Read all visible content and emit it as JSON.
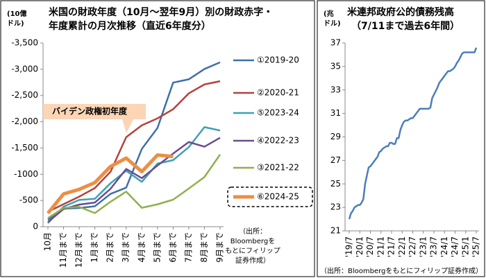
{
  "chart_data": [
    {
      "type": "line",
      "title": [
        "米国の財政年度（10月～翌年9月）別の財政赤字・",
        "年度累計の月次推移（直近6年度分）"
      ],
      "y_label": [
        "(10億",
        "ドル)"
      ],
      "categories": [
        "10月",
        "11月まで",
        "12月まで",
        "1月まで",
        "2月まで",
        "3月まで",
        "4月まで",
        "5月まで",
        "6月まで",
        "7月まで",
        "8月まで",
        "9月まで"
      ],
      "ylim": [
        0,
        -3500
      ],
      "yticks": [
        0,
        -500,
        -1000,
        {
          "value": -1500,
          "label": "-1,500"
        },
        {
          "value": -2000,
          "label": "-2,000"
        },
        {
          "value": -2500,
          "label": "-2,500"
        },
        {
          "value": -3000,
          "label": "-3,000"
        },
        {
          "value": -3500,
          "label": "-3,500"
        }
      ],
      "yticks_fix": null,
      "series": [
        {
          "name": "①2019-20",
          "color": "#3f6faa",
          "values": [
            -134,
            -343,
            -356,
            -389,
            -625,
            -744,
            -1482,
            -1881,
            -2745,
            -2808,
            -3004,
            -3132
          ]
        },
        {
          "name": "②2020-21",
          "color": "#b5413c",
          "values": [
            -284,
            -429,
            -573,
            -736,
            -1047,
            -1706,
            -1932,
            -2064,
            -2238,
            -2540,
            -2711,
            -2772
          ]
        },
        {
          "name": "⑤2023-24",
          "color": "#3ea0b5",
          "values": [
            -67,
            -381,
            -510,
            -532,
            -828,
            -1065,
            -855,
            -1202,
            -1268,
            -1516,
            -1897,
            -1833
          ]
        },
        {
          "name": "④2022-23",
          "color": "#6a4c93",
          "values": [
            -88,
            -336,
            -421,
            -460,
            -723,
            -1100,
            -925,
            -1165,
            -1393,
            -1613,
            -1525,
            -1695
          ]
        },
        {
          "name": "③2021-22",
          "color": "#8fb04a",
          "values": [
            -165,
            -356,
            -378,
            -259,
            -475,
            -668,
            -360,
            -426,
            -515,
            -726,
            -946,
            -1375
          ]
        },
        {
          "name": "⑥2024-25",
          "color": "#eb8f45",
          "values": [
            -257,
            -624,
            -711,
            -840,
            -1147,
            -1307,
            -1049,
            -1365,
            -1337,
            null,
            null,
            null
          ]
        }
      ],
      "annotation": "バイデン政権初年度",
      "source": [
        "（出所：",
        "Bloombergを",
        "もとにフィリップ",
        "証券作成）"
      ]
    },
    {
      "type": "line",
      "title": [
        "米連邦政府公的債務残高",
        "（7/11まで過去6年間）"
      ],
      "y_label": [
        "(兆",
        "ドル)"
      ],
      "color": "#4a7ebb",
      "ylim": [
        21,
        37
      ],
      "yticks": [
        21,
        23,
        25,
        27,
        29,
        31,
        33,
        35,
        37
      ],
      "categories": [
        "'19/7",
        null,
        null,
        null,
        null,
        null,
        "'20/1",
        null,
        null,
        null,
        null,
        null,
        "'20/7",
        null,
        null,
        null,
        null,
        null,
        "'21/1",
        null,
        null,
        null,
        null,
        null,
        "'21/7",
        null,
        null,
        null,
        null,
        null,
        "'22/1",
        null,
        null,
        null,
        null,
        null,
        "'22/7",
        null,
        null,
        null,
        null,
        null,
        "'23/1",
        null,
        null,
        null,
        null,
        null,
        "'23/7",
        null,
        null,
        null,
        null,
        null,
        "'24/1",
        null,
        null,
        null,
        null,
        null,
        "'24/7",
        null,
        null,
        null,
        null,
        null,
        "'25/1",
        null,
        null,
        null,
        null,
        null,
        "'25/7"
      ],
      "values": [
        22.0,
        22.5,
        22.7,
        23.0,
        23.1,
        23.2,
        23.2,
        23.4,
        23.7,
        25.0,
        25.7,
        26.4,
        26.5,
        26.7,
        26.9,
        27.1,
        27.3,
        27.7,
        27.8,
        28.0,
        28.1,
        28.2,
        28.2,
        28.5,
        28.5,
        28.4,
        28.4,
        28.9,
        28.9,
        29.6,
        30.0,
        30.3,
        30.4,
        30.4,
        30.5,
        30.6,
        30.6,
        30.8,
        31.0,
        31.2,
        31.4,
        31.4,
        31.4,
        31.4,
        31.4,
        31.4,
        31.5,
        32.3,
        32.6,
        32.9,
        33.2,
        33.6,
        33.8,
        34.0,
        34.2,
        34.4,
        34.6,
        34.6,
        34.7,
        34.8,
        35.0,
        35.3,
        35.5,
        35.8,
        36.1,
        36.2,
        36.2,
        36.2,
        36.2,
        36.2,
        36.2,
        36.2,
        36.6
      ],
      "source": [
        "（出所：Bloombergをもとにフィリップ証券作成）"
      ]
    }
  ]
}
